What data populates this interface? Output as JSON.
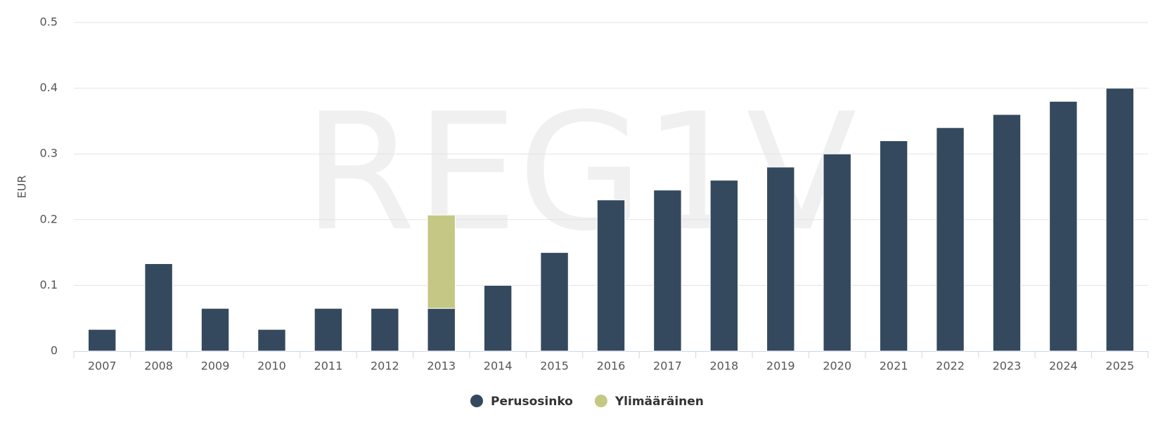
{
  "chart_data": {
    "type": "stacked-bar",
    "watermark": "REG1V",
    "y_label": "EUR",
    "categories": [
      "2007",
      "2008",
      "2009",
      "2010",
      "2011",
      "2012",
      "2013",
      "2014",
      "2015",
      "2016",
      "2017",
      "2018",
      "2019",
      "2020",
      "2021",
      "2022",
      "2023",
      "2024",
      "2025"
    ],
    "series": [
      {
        "name": "Perusosinko",
        "color": "#34495e",
        "values": [
          0.033,
          0.133,
          0.065,
          0.033,
          0.065,
          0.065,
          0.065,
          0.1,
          0.15,
          0.23,
          0.245,
          0.26,
          0.28,
          0.3,
          0.32,
          0.34,
          0.36,
          0.38,
          0.4
        ]
      },
      {
        "name": "Ylimääräinen",
        "color": "#c5c785",
        "values": [
          null,
          null,
          null,
          null,
          null,
          null,
          0.142,
          null,
          null,
          null,
          null,
          null,
          null,
          null,
          null,
          null,
          null,
          null,
          null
        ]
      }
    ],
    "ylim": [
      0,
      0.5
    ],
    "yticks": [
      0,
      0.1,
      0.2,
      0.3,
      0.4,
      0.5
    ],
    "grid": true
  }
}
